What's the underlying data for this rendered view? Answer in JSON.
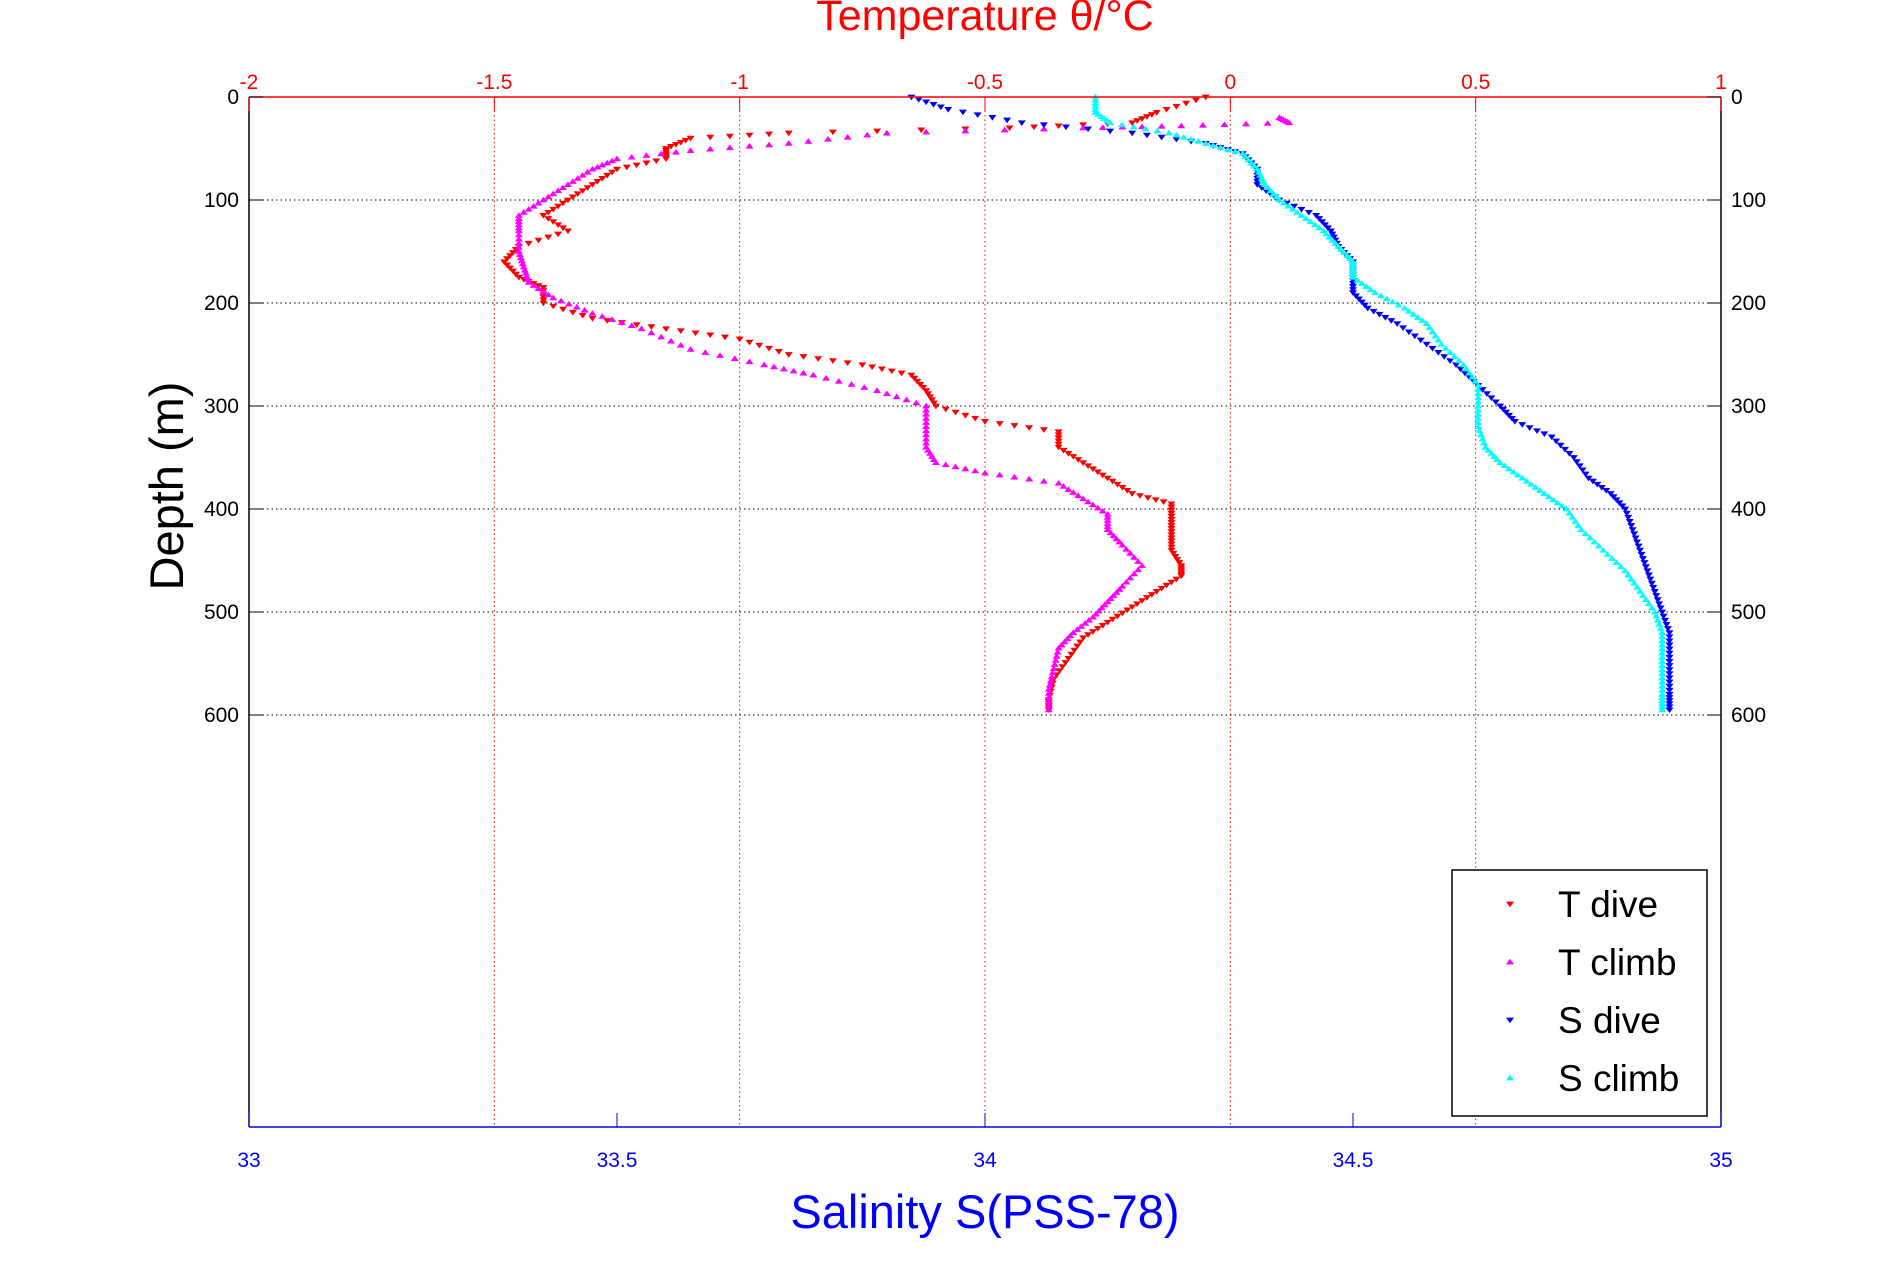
{
  "chart_data": {
    "type": "scatter",
    "top_axis": {
      "label": "Temperature θ/°C",
      "range": [
        -2,
        1
      ],
      "ticks": [
        -2,
        -1.5,
        -1,
        -0.5,
        0,
        0.5,
        1
      ],
      "tick_labels": [
        "-2",
        "-1.5",
        "-1",
        "-0.5",
        "0",
        "0.5",
        "1"
      ],
      "color": "#ff0000"
    },
    "bottom_axis": {
      "label": "Salinity S(PSS-78)",
      "range": [
        33,
        35
      ],
      "ticks": [
        33,
        33.5,
        34,
        34.5,
        35
      ],
      "tick_labels": [
        "33",
        "33.5",
        "34",
        "34.5",
        "35"
      ],
      "color": "#0000ff"
    },
    "y_axis": {
      "label": "Depth (m)",
      "range": [
        0,
        1000
      ],
      "reversed": true,
      "ticks": [
        0,
        100,
        200,
        300,
        400,
        500,
        600
      ],
      "tick_labels": [
        "0",
        "100",
        "200",
        "300",
        "400",
        "500",
        "600"
      ]
    },
    "grid": true,
    "legend_position": "bottom-right",
    "series": [
      {
        "name": "T dive",
        "axis": "top",
        "color": "#ff0000",
        "marker": "triangle-down",
        "points": [
          [
            -0.05,
            0
          ],
          [
            -0.15,
            15
          ],
          [
            -0.2,
            25
          ],
          [
            -0.45,
            30
          ],
          [
            -0.9,
            35
          ],
          [
            -1.1,
            40
          ],
          [
            -1.15,
            50
          ],
          [
            -1.15,
            60
          ],
          [
            -1.25,
            70
          ],
          [
            -1.3,
            85
          ],
          [
            -1.35,
            100
          ],
          [
            -1.4,
            115
          ],
          [
            -1.35,
            130
          ],
          [
            -1.45,
            145
          ],
          [
            -1.48,
            160
          ],
          [
            -1.45,
            175
          ],
          [
            -1.4,
            185
          ],
          [
            -1.4,
            200
          ],
          [
            -1.3,
            215
          ],
          [
            -1.15,
            225
          ],
          [
            -1,
            235
          ],
          [
            -0.9,
            250
          ],
          [
            -0.75,
            260
          ],
          [
            -0.65,
            270
          ],
          [
            -0.62,
            285
          ],
          [
            -0.6,
            300
          ],
          [
            -0.5,
            315
          ],
          [
            -0.35,
            325
          ],
          [
            -0.35,
            340
          ],
          [
            -0.3,
            355
          ],
          [
            -0.25,
            370
          ],
          [
            -0.2,
            385
          ],
          [
            -0.12,
            395
          ],
          [
            -0.12,
            410
          ],
          [
            -0.12,
            425
          ],
          [
            -0.12,
            440
          ],
          [
            -0.1,
            455
          ],
          [
            -0.1,
            465
          ],
          [
            -0.15,
            480
          ],
          [
            -0.2,
            495
          ],
          [
            -0.25,
            510
          ],
          [
            -0.3,
            525
          ],
          [
            -0.33,
            545
          ],
          [
            -0.36,
            565
          ],
          [
            -0.37,
            585
          ],
          [
            -0.37,
            595
          ]
        ]
      },
      {
        "name": "T climb",
        "axis": "top",
        "color": "#ff00ff",
        "marker": "triangle-up",
        "points": [
          [
            0.1,
            20
          ],
          [
            0.12,
            25
          ],
          [
            -0.1,
            28
          ],
          [
            -0.3,
            30
          ],
          [
            -0.7,
            35
          ],
          [
            -0.9,
            45
          ],
          [
            -1.1,
            52
          ],
          [
            -1.25,
            60
          ],
          [
            -1.3,
            70
          ],
          [
            -1.35,
            85
          ],
          [
            -1.4,
            100
          ],
          [
            -1.45,
            115
          ],
          [
            -1.45,
            130
          ],
          [
            -1.45,
            150
          ],
          [
            -1.44,
            165
          ],
          [
            -1.43,
            180
          ],
          [
            -1.38,
            195
          ],
          [
            -1.3,
            210
          ],
          [
            -1.2,
            225
          ],
          [
            -1.1,
            245
          ],
          [
            -0.95,
            260
          ],
          [
            -0.85,
            270
          ],
          [
            -0.72,
            285
          ],
          [
            -0.62,
            300
          ],
          [
            -0.62,
            320
          ],
          [
            -0.62,
            340
          ],
          [
            -0.6,
            355
          ],
          [
            -0.5,
            365
          ],
          [
            -0.35,
            375
          ],
          [
            -0.3,
            390
          ],
          [
            -0.25,
            405
          ],
          [
            -0.25,
            420
          ],
          [
            -0.22,
            435
          ],
          [
            -0.18,
            455
          ],
          [
            -0.22,
            475
          ],
          [
            -0.25,
            490
          ],
          [
            -0.28,
            505
          ],
          [
            -0.32,
            520
          ],
          [
            -0.35,
            535
          ],
          [
            -0.36,
            555
          ],
          [
            -0.37,
            575
          ],
          [
            -0.37,
            595
          ]
        ]
      },
      {
        "name": "S dive",
        "axis": "bottom",
        "color": "#0000ff",
        "marker": "triangle-down",
        "points": [
          [
            33.9,
            0
          ],
          [
            33.95,
            12
          ],
          [
            34.05,
            25
          ],
          [
            34.2,
            35
          ],
          [
            34.3,
            45
          ],
          [
            34.35,
            55
          ],
          [
            34.37,
            70
          ],
          [
            34.37,
            85
          ],
          [
            34.4,
            100
          ],
          [
            34.45,
            115
          ],
          [
            34.47,
            130
          ],
          [
            34.48,
            145
          ],
          [
            34.5,
            160
          ],
          [
            34.5,
            175
          ],
          [
            34.5,
            190
          ],
          [
            34.52,
            205
          ],
          [
            34.56,
            220
          ],
          [
            34.6,
            240
          ],
          [
            34.64,
            260
          ],
          [
            34.67,
            280
          ],
          [
            34.7,
            300
          ],
          [
            34.72,
            315
          ],
          [
            34.77,
            330
          ],
          [
            34.8,
            350
          ],
          [
            34.82,
            370
          ],
          [
            34.85,
            385
          ],
          [
            34.87,
            400
          ],
          [
            34.88,
            420
          ],
          [
            34.89,
            440
          ],
          [
            34.9,
            460
          ],
          [
            34.91,
            480
          ],
          [
            34.92,
            500
          ],
          [
            34.93,
            520
          ],
          [
            34.93,
            540
          ],
          [
            34.93,
            560
          ],
          [
            34.93,
            580
          ],
          [
            34.93,
            595
          ]
        ]
      },
      {
        "name": "S climb",
        "axis": "bottom",
        "color": "#00ffff",
        "marker": "triangle-up",
        "points": [
          [
            34.15,
            0
          ],
          [
            34.15,
            15
          ],
          [
            34.17,
            25
          ],
          [
            34.25,
            35
          ],
          [
            34.3,
            45
          ],
          [
            34.35,
            55
          ],
          [
            34.37,
            70
          ],
          [
            34.38,
            85
          ],
          [
            34.4,
            100
          ],
          [
            34.43,
            115
          ],
          [
            34.46,
            130
          ],
          [
            34.48,
            145
          ],
          [
            34.5,
            160
          ],
          [
            34.5,
            175
          ],
          [
            34.53,
            190
          ],
          [
            34.57,
            205
          ],
          [
            34.6,
            220
          ],
          [
            34.62,
            240
          ],
          [
            34.65,
            260
          ],
          [
            34.67,
            280
          ],
          [
            34.67,
            300
          ],
          [
            34.67,
            320
          ],
          [
            34.68,
            340
          ],
          [
            34.7,
            355
          ],
          [
            34.73,
            370
          ],
          [
            34.76,
            385
          ],
          [
            34.79,
            400
          ],
          [
            34.81,
            420
          ],
          [
            34.84,
            440
          ],
          [
            34.87,
            460
          ],
          [
            34.89,
            480
          ],
          [
            34.91,
            500
          ],
          [
            34.92,
            520
          ],
          [
            34.92,
            540
          ],
          [
            34.92,
            560
          ],
          [
            34.92,
            580
          ],
          [
            34.92,
            595
          ]
        ]
      }
    ]
  }
}
